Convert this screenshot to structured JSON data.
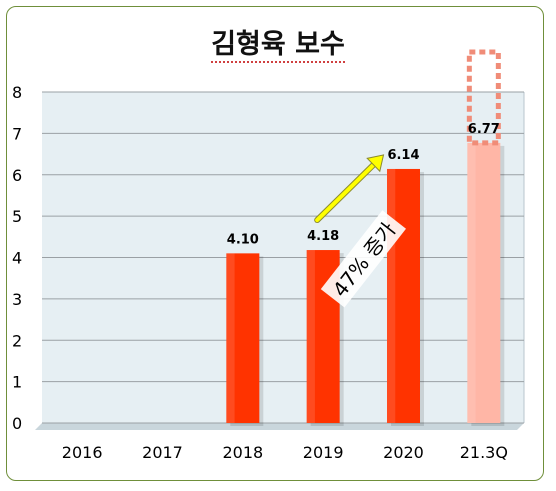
{
  "chart_data": {
    "type": "bar",
    "title": "김형육 보수",
    "categories": [
      "2016",
      "2017",
      "2018",
      "2019",
      "2020",
      "21.3Q"
    ],
    "values": [
      null,
      null,
      4.1,
      4.18,
      6.14,
      6.77
    ],
    "value_labels": [
      "",
      "",
      "4.10",
      "4.18",
      "6.14",
      "6.77"
    ],
    "ylim": [
      0,
      8
    ],
    "yticks": [
      "0",
      "1",
      "2",
      "3",
      "4",
      "5",
      "6",
      "7",
      "8"
    ],
    "grid": true,
    "legend": "none",
    "colors": {
      "bar": "#ff3300",
      "bar_partial": "#ffb6a6",
      "plot_bg": "#e6eff3",
      "arrow": "#ffff00",
      "dashed_box": "#f08c78",
      "frame": "#6f8f3a"
    },
    "partial_index": 5,
    "annotation": {
      "text": "47% 증가",
      "from_category": "2019",
      "to_category": "2020"
    }
  }
}
